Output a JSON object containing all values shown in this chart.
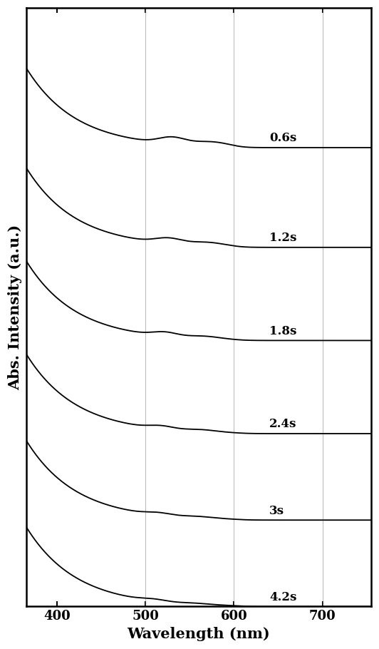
{
  "xlabel": "Wavelength (nm)",
  "ylabel": "Abs. Intensity (a.u.)",
  "xlim": [
    365,
    755
  ],
  "xticks": [
    400,
    500,
    600,
    700
  ],
  "vlines": [
    500,
    600,
    700
  ],
  "labels": [
    "4.2s",
    "3s",
    "2.4s",
    "1.8s",
    "1.2s",
    "0.6s"
  ],
  "background_color": "#ffffff",
  "line_color": "#000000",
  "vline_color": "#888888",
  "label_fontsize": 12,
  "axis_label_fontsize": 15,
  "tick_fontsize": 13,
  "figsize": [
    5.32,
    9.1
  ],
  "dpi": 100
}
